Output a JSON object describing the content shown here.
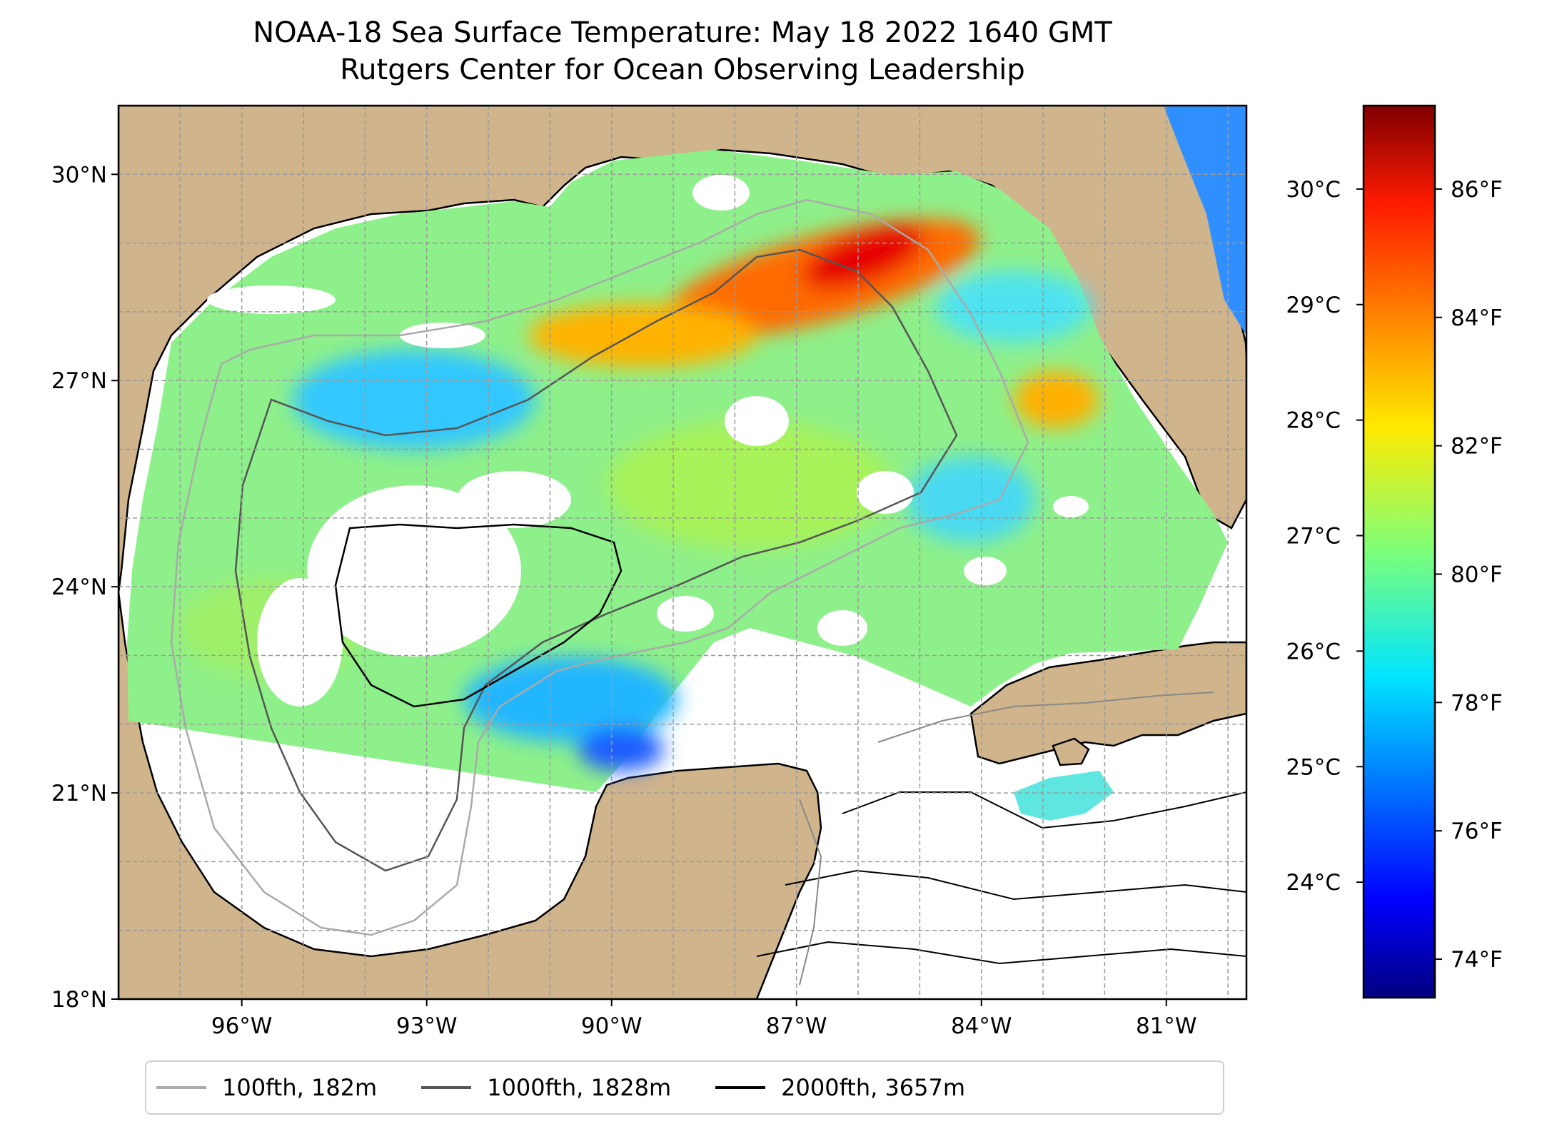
{
  "title_line1": "NOAA-18 Sea Surface Temperature: May 18 2022 1640 GMT",
  "title_line2": "Rutgers Center for Ocean Observing Leadership",
  "map": {
    "lon_range": [
      -98.0,
      -79.7
    ],
    "lat_range": [
      18.0,
      31.0
    ],
    "lat_ticks": [
      {
        "value": 30,
        "label": "30°N"
      },
      {
        "value": 27,
        "label": "27°N"
      },
      {
        "value": 24,
        "label": "24°N"
      },
      {
        "value": 21,
        "label": "21°N"
      },
      {
        "value": 18,
        "label": "18°N"
      }
    ],
    "lon_ticks": [
      {
        "value": -96,
        "label": "96°W"
      },
      {
        "value": -93,
        "label": "93°W"
      },
      {
        "value": -90,
        "label": "90°W"
      },
      {
        "value": -87,
        "label": "87°W"
      },
      {
        "value": -84,
        "label": "84°W"
      },
      {
        "value": -81,
        "label": "81°W"
      }
    ],
    "grid": true,
    "land_color": "#d0b48c",
    "nodata_color": "#ffffff"
  },
  "colorbar": {
    "colormap": "jet",
    "range_f": [
      73.4,
      87.3
    ],
    "fahrenheit_ticks": [
      {
        "value": 74,
        "label": "74°F"
      },
      {
        "value": 76,
        "label": "76°F"
      },
      {
        "value": 78,
        "label": "78°F"
      },
      {
        "value": 80,
        "label": "80°F"
      },
      {
        "value": 82,
        "label": "82°F"
      },
      {
        "value": 84,
        "label": "84°F"
      },
      {
        "value": 86,
        "label": "86°F"
      }
    ],
    "celsius_ticks": [
      {
        "value": 24,
        "label": "24°C"
      },
      {
        "value": 25,
        "label": "25°C"
      },
      {
        "value": 26,
        "label": "26°C"
      },
      {
        "value": 27,
        "label": "27°C"
      },
      {
        "value": 28,
        "label": "28°C"
      },
      {
        "value": 29,
        "label": "29°C"
      },
      {
        "value": 30,
        "label": "30°C"
      }
    ]
  },
  "legend": [
    {
      "label": "100fth, 182m",
      "color": "#aaaaaa"
    },
    {
      "label": "1000fth, 1828m",
      "color": "#555555"
    },
    {
      "label": "2000fth, 3657m",
      "color": "#000000"
    }
  ]
}
